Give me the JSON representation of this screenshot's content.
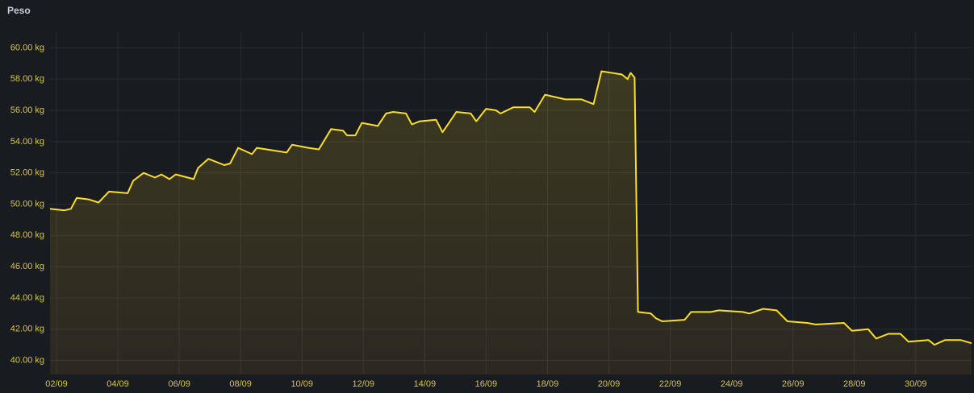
{
  "chart_data": {
    "type": "line",
    "title": "Peso",
    "x": [
      1.79,
      2.26,
      2.47,
      2.66,
      3.05,
      3.37,
      3.71,
      4.32,
      4.5,
      4.84,
      5.21,
      5.42,
      5.68,
      5.89,
      6.47,
      6.61,
      6.95,
      7.47,
      7.66,
      7.92,
      8.37,
      8.53,
      9.5,
      9.68,
      10.21,
      10.55,
      10.95,
      11.34,
      11.47,
      11.74,
      11.95,
      12.47,
      12.74,
      12.97,
      13.39,
      13.58,
      13.84,
      14.37,
      14.58,
      14.79,
      15.03,
      15.5,
      15.68,
      16.0,
      16.32,
      16.47,
      16.89,
      17.42,
      17.58,
      17.92,
      18.58,
      19.11,
      19.5,
      19.76,
      20.42,
      20.61,
      20.71,
      20.84,
      20.95,
      21.37,
      21.53,
      21.74,
      22.47,
      22.68,
      23.32,
      23.58,
      24.37,
      24.58,
      25.03,
      25.47,
      25.82,
      26.47,
      26.74,
      27.66,
      27.92,
      28.45,
      28.71,
      29.11,
      29.5,
      29.76,
      30.42,
      30.61,
      30.95,
      31.47,
      31.82
    ],
    "series": [
      {
        "name": "Peso",
        "color": "#fade2a",
        "values": [
          49.7,
          49.6,
          49.7,
          50.4,
          50.3,
          50.1,
          50.8,
          50.7,
          51.5,
          52.0,
          51.7,
          51.9,
          51.6,
          51.9,
          51.6,
          52.3,
          52.9,
          52.5,
          52.6,
          53.6,
          53.2,
          53.6,
          53.3,
          53.8,
          53.6,
          53.5,
          54.8,
          54.7,
          54.4,
          54.4,
          55.2,
          55.0,
          55.8,
          55.9,
          55.8,
          55.1,
          55.3,
          55.4,
          54.6,
          55.2,
          55.9,
          55.8,
          55.3,
          56.1,
          56.0,
          55.8,
          56.2,
          56.2,
          55.9,
          57.0,
          56.7,
          56.7,
          56.4,
          58.5,
          58.3,
          58.0,
          58.4,
          58.1,
          43.1,
          43.0,
          42.7,
          42.5,
          42.6,
          43.1,
          43.1,
          43.2,
          43.1,
          43.0,
          43.3,
          43.2,
          42.5,
          42.4,
          42.3,
          42.4,
          41.9,
          42.0,
          41.4,
          41.7,
          41.7,
          41.2,
          41.3,
          41.0,
          41.3,
          41.3,
          41.1
        ]
      }
    ],
    "xlim": [
      1.79,
      31.82
    ],
    "xticks": [
      {
        "value": 2,
        "label": "02/09"
      },
      {
        "value": 4,
        "label": "04/09"
      },
      {
        "value": 6,
        "label": "06/09"
      },
      {
        "value": 8,
        "label": "08/09"
      },
      {
        "value": 10,
        "label": "10/09"
      },
      {
        "value": 12,
        "label": "12/09"
      },
      {
        "value": 14,
        "label": "14/09"
      },
      {
        "value": 16,
        "label": "16/09"
      },
      {
        "value": 18,
        "label": "18/09"
      },
      {
        "value": 20,
        "label": "20/09"
      },
      {
        "value": 22,
        "label": "22/09"
      },
      {
        "value": 24,
        "label": "24/09"
      },
      {
        "value": 26,
        "label": "26/09"
      },
      {
        "value": 28,
        "label": "28/09"
      },
      {
        "value": 30,
        "label": "30/09"
      }
    ],
    "ylim": [
      39.1,
      61
    ],
    "yticks": [
      {
        "value": 40,
        "label": "40.00 kg"
      },
      {
        "value": 42,
        "label": "42.00 kg"
      },
      {
        "value": 44,
        "label": "44.00 kg"
      },
      {
        "value": 46,
        "label": "46.00 kg"
      },
      {
        "value": 48,
        "label": "48.00 kg"
      },
      {
        "value": 50,
        "label": "50.00 kg"
      },
      {
        "value": 52,
        "label": "52.00 kg"
      },
      {
        "value": 54,
        "label": "54.00 kg"
      },
      {
        "value": 56,
        "label": "56.00 kg"
      },
      {
        "value": 58,
        "label": "58.00 kg"
      },
      {
        "value": 60,
        "label": "60.00 kg"
      }
    ],
    "grid": true,
    "fill": true
  }
}
